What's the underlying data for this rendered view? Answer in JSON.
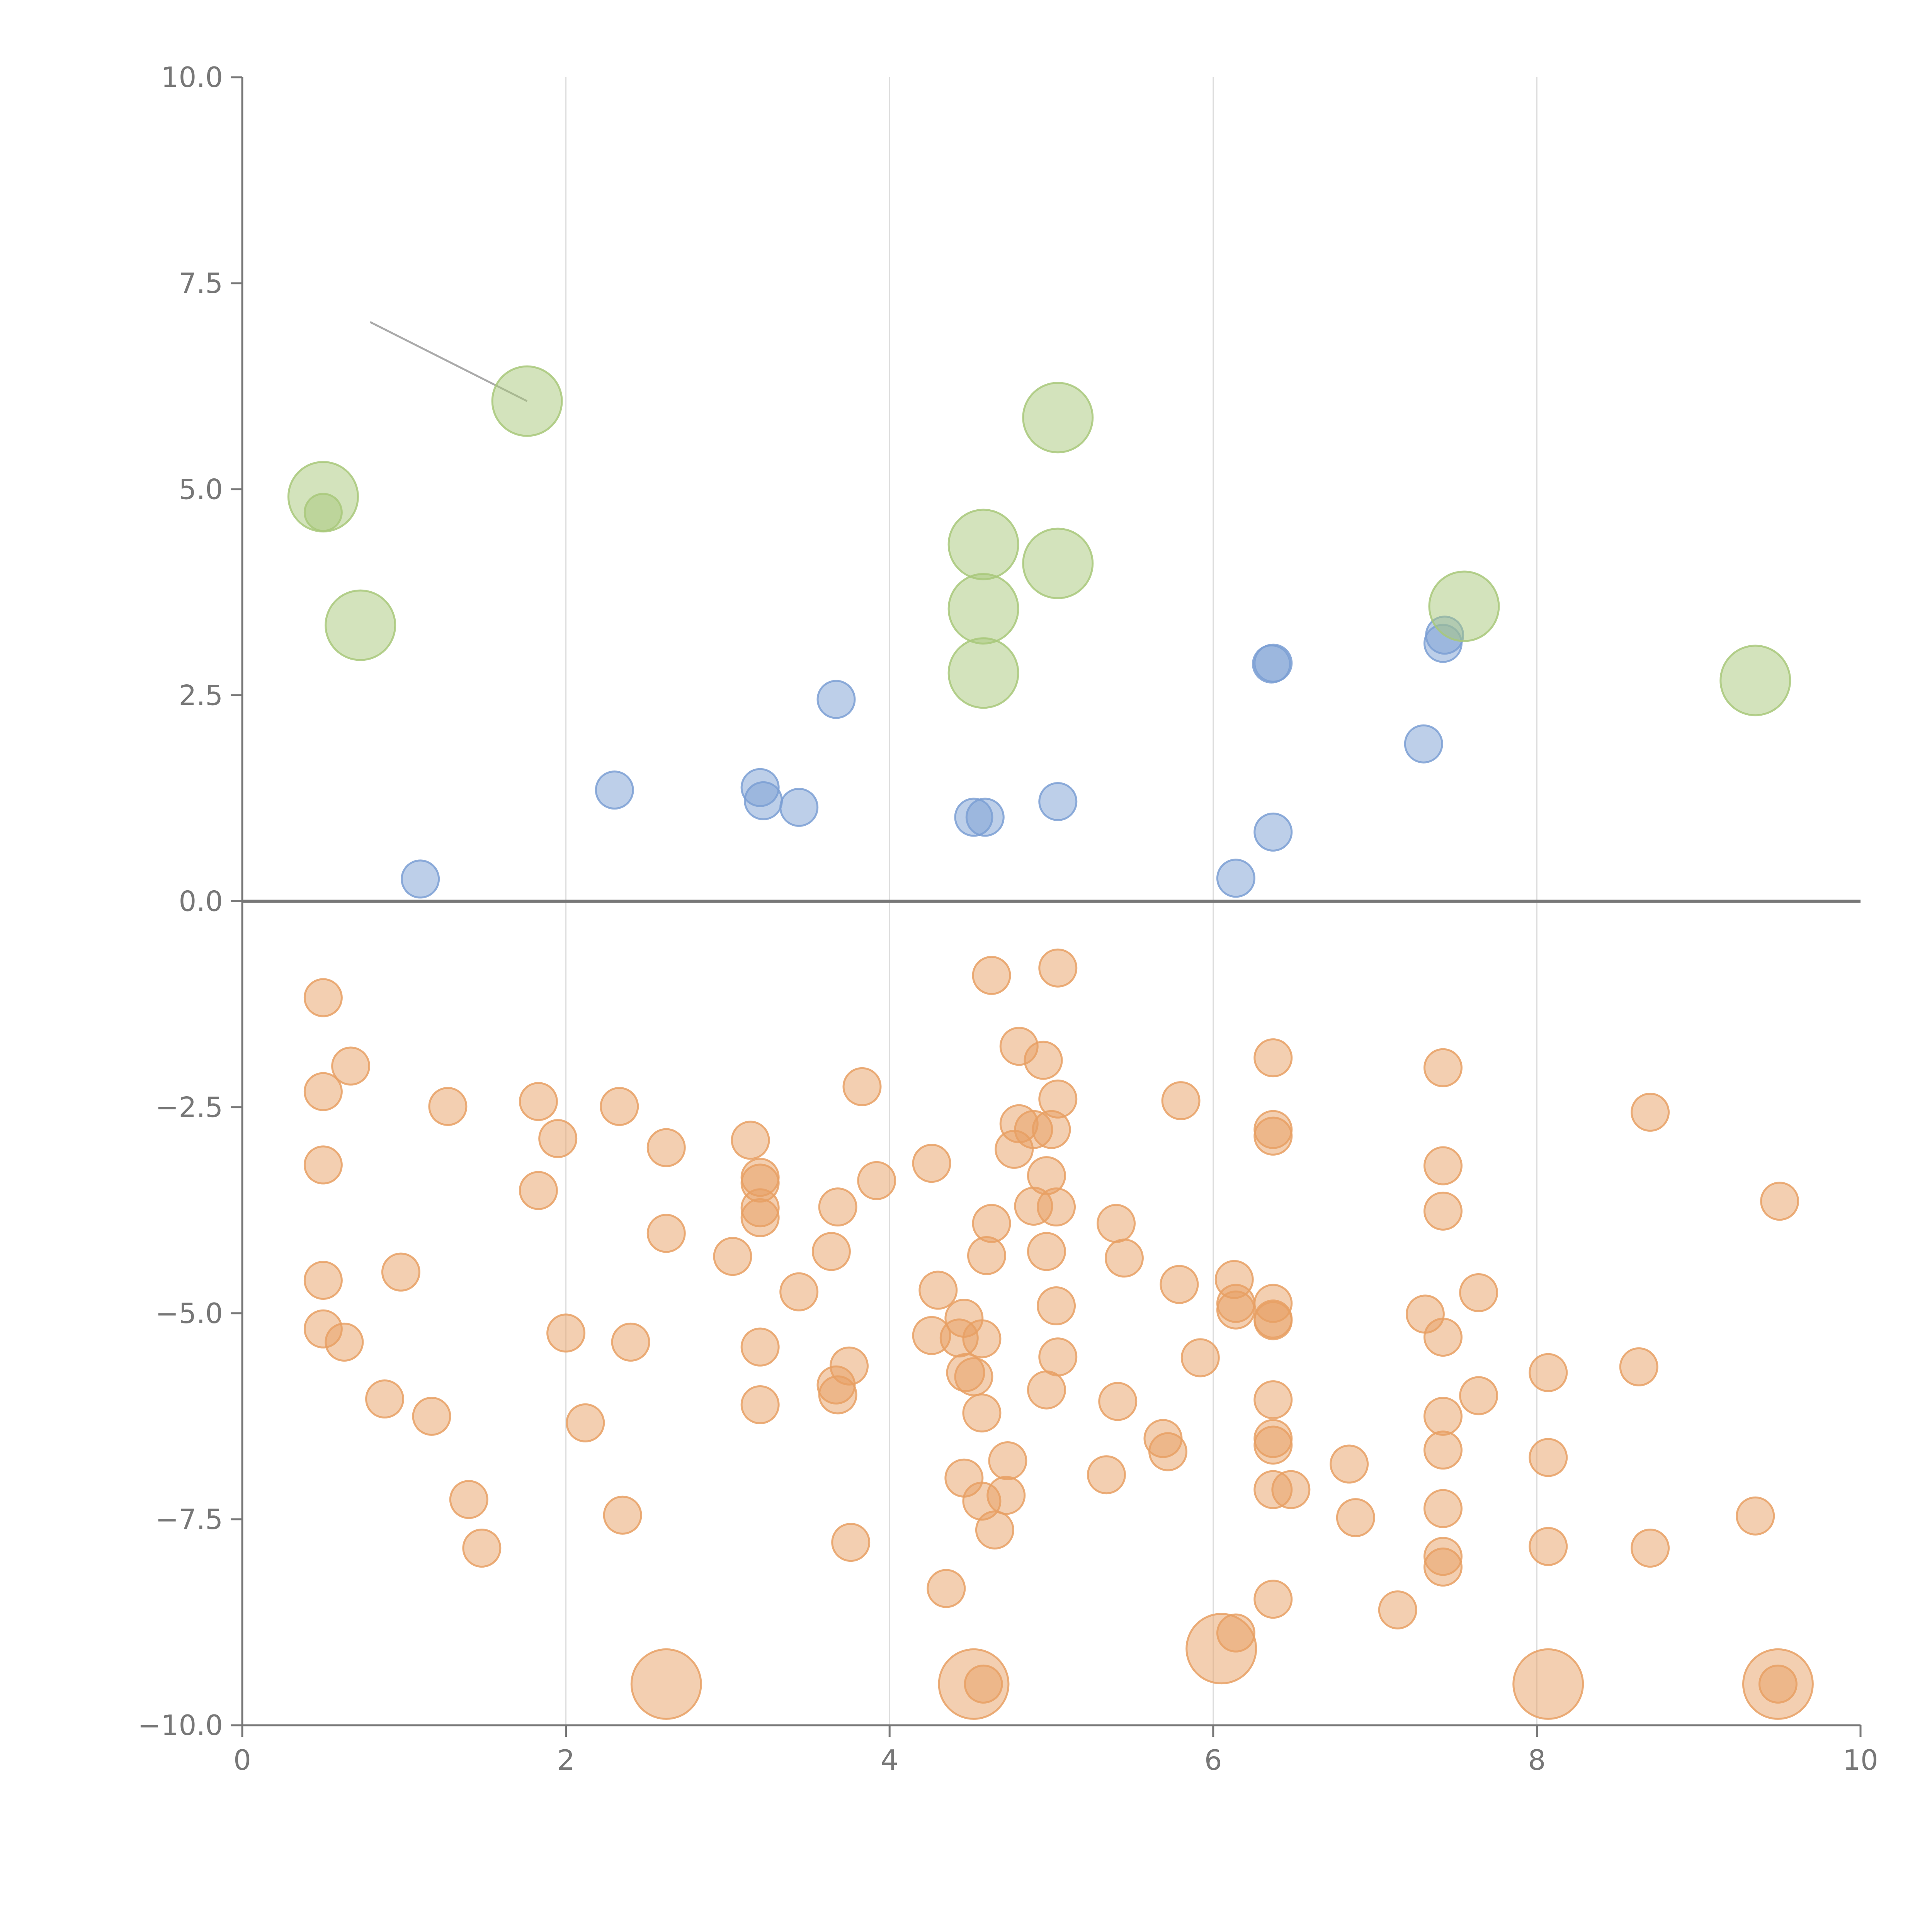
{
  "chart_data": {
    "type": "scatter",
    "title": "",
    "xlabel": "",
    "ylabel": "",
    "xlim": [
      0,
      10
    ],
    "ylim": [
      -10,
      10
    ],
    "grid": "vertical lines at x = 2, 4, 6, 8",
    "legend": "none",
    "x_ticks": [
      "0",
      "2",
      "4",
      "6",
      "8",
      "10"
    ],
    "y_ticks": [
      "10.0",
      "7.5",
      "5.0",
      "2.5",
      "0.0",
      "−2.5",
      "−5.0",
      "−7.5",
      "−10.0"
    ],
    "x_tick_values": [
      0,
      2,
      4,
      6,
      8,
      10
    ],
    "y_tick_values": [
      10,
      7.5,
      5,
      2.5,
      0,
      -2.5,
      -5,
      -7.5,
      -10
    ],
    "colors": {
      "blue": "#7b9fd4",
      "green": "#a8c87a",
      "orange": "#e8a064",
      "axis": "#777777",
      "grid": "#dddddd"
    },
    "series": [
      {
        "name": "blue",
        "point_size": "small",
        "points": [
          [
            1.1,
            0.27
          ],
          [
            2.3,
            1.35
          ],
          [
            3.2,
            1.38
          ],
          [
            3.22,
            1.22
          ],
          [
            3.44,
            1.14
          ],
          [
            3.67,
            2.45
          ],
          [
            4.52,
            1.02
          ],
          [
            4.59,
            1.02
          ],
          [
            5.04,
            1.21
          ],
          [
            6.14,
            0.28
          ],
          [
            6.36,
            2.88
          ],
          [
            6.37,
            2.89
          ],
          [
            6.37,
            0.84
          ],
          [
            7.3,
            1.91
          ],
          [
            7.42,
            3.13
          ],
          [
            7.43,
            3.23
          ]
        ]
      },
      {
        "name": "green",
        "point_size": "large",
        "points": [
          [
            0.5,
            4.91
          ],
          [
            0.73,
            3.35
          ],
          [
            1.76,
            6.07
          ],
          [
            4.58,
            4.33
          ],
          [
            4.58,
            3.55
          ],
          [
            4.58,
            2.77
          ],
          [
            5.04,
            5.87
          ],
          [
            5.04,
            4.1
          ],
          [
            7.55,
            3.58
          ],
          [
            9.35,
            2.68
          ]
        ]
      },
      {
        "name": "green-small",
        "point_size": "small",
        "points": [
          [
            0.5,
            4.72
          ]
        ]
      },
      {
        "name": "orange",
        "point_size": "small",
        "points": [
          [
            0.5,
            -1.17
          ],
          [
            0.67,
            -2.0
          ],
          [
            0.5,
            -2.31
          ],
          [
            0.5,
            -3.2
          ],
          [
            0.5,
            -4.6
          ],
          [
            0.5,
            -5.19
          ],
          [
            0.63,
            -5.35
          ],
          [
            0.98,
            -4.5
          ],
          [
            0.88,
            -6.04
          ],
          [
            1.17,
            -6.25
          ],
          [
            1.27,
            -2.49
          ],
          [
            1.4,
            -7.26
          ],
          [
            1.48,
            -7.85
          ],
          [
            1.83,
            -2.43
          ],
          [
            1.83,
            -3.51
          ],
          [
            1.95,
            -2.88
          ],
          [
            2.0,
            -5.24
          ],
          [
            2.12,
            -6.33
          ],
          [
            2.33,
            -2.49
          ],
          [
            2.35,
            -7.45
          ],
          [
            2.4,
            -5.35
          ],
          [
            2.62,
            -2.99
          ],
          [
            2.62,
            -4.03
          ],
          [
            3.03,
            -4.31
          ],
          [
            3.14,
            -2.9
          ],
          [
            3.2,
            -3.35
          ],
          [
            3.2,
            -3.42
          ],
          [
            3.2,
            -3.72
          ],
          [
            3.2,
            -3.84
          ],
          [
            3.2,
            -5.41
          ],
          [
            3.2,
            -6.11
          ],
          [
            3.44,
            -4.74
          ],
          [
            3.64,
            -4.25
          ],
          [
            3.68,
            -3.71
          ],
          [
            3.67,
            -5.87
          ],
          [
            3.68,
            -5.99
          ],
          [
            3.75,
            -5.64
          ],
          [
            3.76,
            -7.78
          ],
          [
            3.83,
            -2.25
          ],
          [
            3.92,
            -3.39
          ],
          [
            4.26,
            -3.18
          ],
          [
            4.26,
            -5.27
          ],
          [
            4.3,
            -4.72
          ],
          [
            4.35,
            -8.34
          ],
          [
            4.43,
            -5.3
          ],
          [
            4.46,
            -5.06
          ],
          [
            4.47,
            -5.72
          ],
          [
            4.46,
            -7.0
          ],
          [
            4.52,
            -5.77
          ],
          [
            4.57,
            -5.31
          ],
          [
            4.57,
            -6.21
          ],
          [
            4.57,
            -7.28
          ],
          [
            4.6,
            -4.3
          ],
          [
            4.63,
            -0.9
          ],
          [
            4.63,
            -3.91
          ],
          [
            4.65,
            -7.63
          ],
          [
            4.73,
            -6.79
          ],
          [
            4.72,
            -7.21
          ],
          [
            4.77,
            -3.01
          ],
          [
            4.8,
            -1.76
          ],
          [
            4.8,
            -2.7
          ],
          [
            4.89,
            -2.77
          ],
          [
            4.89,
            -3.7
          ],
          [
            4.95,
            -1.93
          ],
          [
            4.97,
            -3.33
          ],
          [
            4.97,
            -4.25
          ],
          [
            4.97,
            -5.93
          ],
          [
            5.0,
            -2.77
          ],
          [
            5.03,
            -3.71
          ],
          [
            5.03,
            -4.91
          ],
          [
            5.04,
            -0.81
          ],
          [
            5.04,
            -2.4
          ],
          [
            5.04,
            -5.53
          ],
          [
            5.34,
            -6.96
          ],
          [
            5.4,
            -3.91
          ],
          [
            5.41,
            -6.07
          ],
          [
            5.45,
            -4.33
          ],
          [
            5.69,
            -6.52
          ],
          [
            5.72,
            -6.68
          ],
          [
            5.8,
            -2.42
          ],
          [
            5.79,
            -4.65
          ],
          [
            5.92,
            -5.54
          ],
          [
            6.13,
            -4.59
          ],
          [
            6.14,
            -4.88
          ],
          [
            6.14,
            -4.96
          ],
          [
            6.37,
            -1.9
          ],
          [
            6.37,
            -2.77
          ],
          [
            6.37,
            -2.85
          ],
          [
            6.37,
            -4.88
          ],
          [
            6.37,
            -5.07
          ],
          [
            6.37,
            -5.09
          ],
          [
            6.37,
            -6.05
          ],
          [
            6.37,
            -6.52
          ],
          [
            6.37,
            -6.6
          ],
          [
            6.37,
            -7.14
          ],
          [
            6.37,
            -8.47
          ],
          [
            6.48,
            -7.14
          ],
          [
            6.84,
            -6.83
          ],
          [
            6.88,
            -7.48
          ],
          [
            7.14,
            -8.6
          ],
          [
            7.31,
            -5.01
          ],
          [
            7.42,
            -2.02
          ],
          [
            7.42,
            -3.21
          ],
          [
            7.42,
            -3.76
          ],
          [
            7.42,
            -5.29
          ],
          [
            7.42,
            -6.25
          ],
          [
            7.42,
            -6.66
          ],
          [
            7.42,
            -7.37
          ],
          [
            7.42,
            -7.95
          ],
          [
            7.42,
            -8.08
          ],
          [
            7.64,
            -4.75
          ],
          [
            7.64,
            -6.0
          ],
          [
            8.07,
            -5.72
          ],
          [
            8.07,
            -6.75
          ],
          [
            8.07,
            -7.83
          ],
          [
            8.63,
            -5.65
          ],
          [
            8.7,
            -2.56
          ],
          [
            8.7,
            -7.85
          ],
          [
            9.35,
            -7.46
          ],
          [
            9.5,
            -3.64
          ],
          [
            6.14,
            -8.88
          ],
          [
            4.58,
            -9.5
          ],
          [
            9.49,
            -9.5
          ]
        ]
      },
      {
        "name": "orange-large",
        "point_size": "large",
        "points": [
          [
            2.62,
            -9.5
          ],
          [
            4.52,
            -9.5
          ],
          [
            6.05,
            -9.07
          ],
          [
            8.07,
            -9.5
          ],
          [
            9.49,
            -9.5
          ]
        ]
      }
    ],
    "annotations": [
      {
        "label": "",
        "from": [
          0.79,
          7.03
        ],
        "to": [
          1.76,
          6.07
        ]
      }
    ]
  }
}
